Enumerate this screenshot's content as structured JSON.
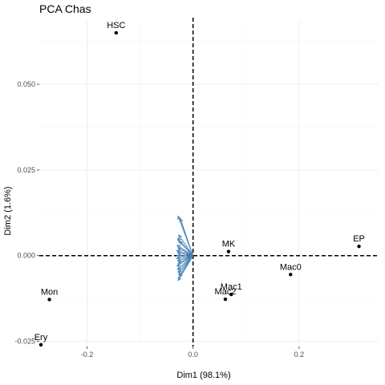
{
  "chart_data": {
    "type": "scatter",
    "title": "PCA Chas",
    "xlabel": "Dim1 (98.1%)",
    "ylabel": "Dim2 (1.6%)",
    "xlim": [
      -0.29,
      0.35
    ],
    "ylim": [
      -0.0265,
      0.0685
    ],
    "x_ticks": [
      -0.2,
      0.0,
      0.2
    ],
    "x_tick_labels": [
      "-0.2",
      "0.0",
      "0.2"
    ],
    "y_ticks": [
      -0.025,
      0.0,
      0.025,
      0.05
    ],
    "y_tick_labels": [
      "-0.025",
      "0.000",
      "0.025",
      "0.050"
    ],
    "x_minor": [
      -0.3,
      -0.1,
      0.1,
      0.3
    ],
    "y_minor": [
      -0.0125,
      0.0125,
      0.0375,
      0.0625
    ],
    "grid": true,
    "reference_lines": {
      "x": 0,
      "y": 0,
      "style": "dashed"
    },
    "points": [
      {
        "label": "HSC",
        "x": -0.145,
        "y": 0.065
      },
      {
        "label": "MK",
        "x": 0.067,
        "y": 0.0012
      },
      {
        "label": "EP",
        "x": 0.313,
        "y": 0.0027
      },
      {
        "label": "Mac0",
        "x": 0.184,
        "y": -0.0055
      },
      {
        "label": "Mac1",
        "x": 0.072,
        "y": -0.0113
      },
      {
        "label": "Mac2",
        "x": 0.061,
        "y": -0.0127
      },
      {
        "label": "Mon",
        "x": -0.271,
        "y": -0.0128
      },
      {
        "label": "Ery",
        "x": -0.287,
        "y": -0.026
      }
    ],
    "arrow_color": "#4682b4",
    "arrows": [
      {
        "x": -0.028,
        "y": 0.0115
      },
      {
        "x": -0.024,
        "y": 0.0108
      },
      {
        "x": -0.027,
        "y": 0.006
      },
      {
        "x": -0.029,
        "y": 0.005
      },
      {
        "x": -0.026,
        "y": 0.0042
      },
      {
        "x": -0.03,
        "y": 0.003
      },
      {
        "x": -0.028,
        "y": 0.0022
      },
      {
        "x": -0.031,
        "y": 0.0015
      },
      {
        "x": -0.029,
        "y": 0.0008
      },
      {
        "x": -0.03,
        "y": 0.0
      },
      {
        "x": -0.031,
        "y": -0.0008
      },
      {
        "x": -0.029,
        "y": -0.0015
      },
      {
        "x": -0.028,
        "y": -0.0022
      },
      {
        "x": -0.03,
        "y": -0.003
      },
      {
        "x": -0.029,
        "y": -0.004
      },
      {
        "x": -0.028,
        "y": -0.0048
      },
      {
        "x": -0.027,
        "y": -0.0055
      },
      {
        "x": -0.026,
        "y": -0.0062
      },
      {
        "x": -0.028,
        "y": -0.0072
      }
    ]
  }
}
